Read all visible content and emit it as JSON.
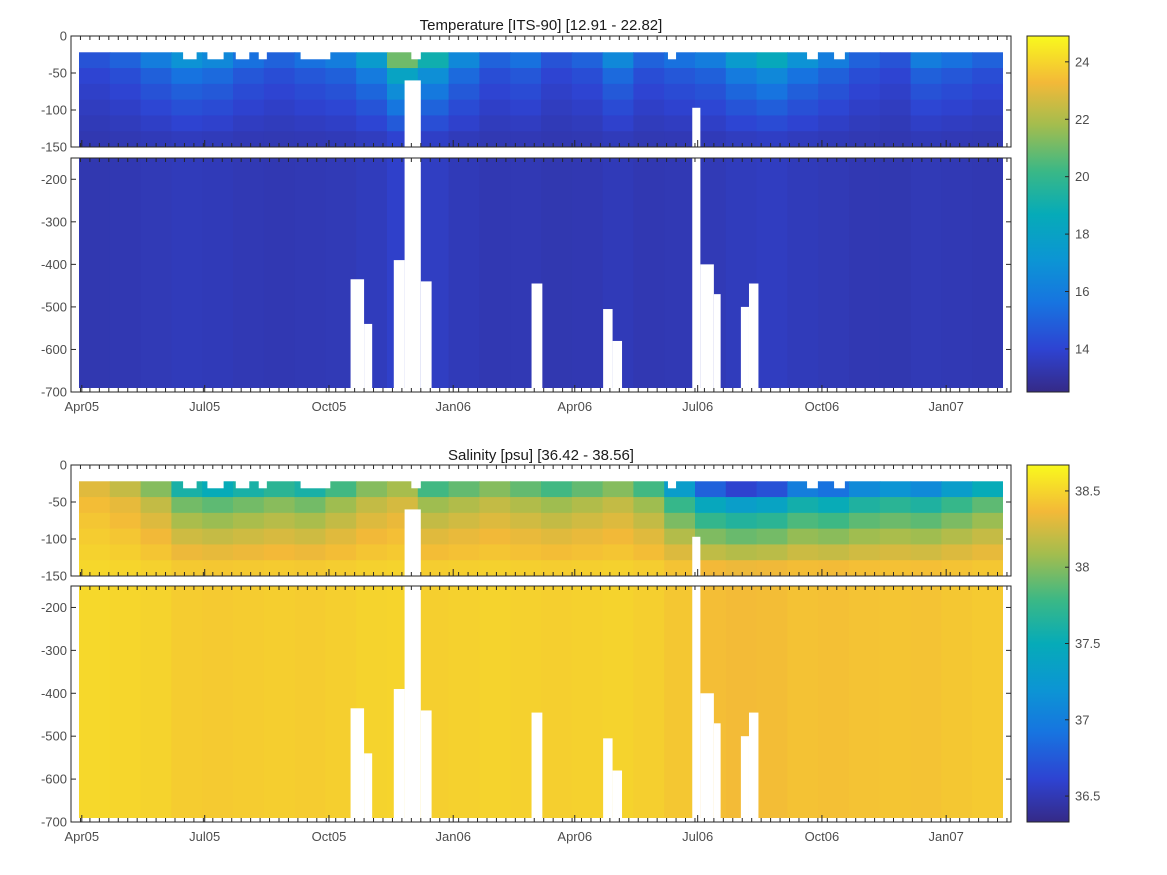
{
  "chart_data": [
    {
      "type": "heatmap",
      "title": "Temperature [ITS-90]   [12.91 - 22.82]",
      "variable": "Temperature",
      "xlabel": "",
      "ylabel": "",
      "x_tick_labels": [
        "Apr05",
        "Jul05",
        "Oct05",
        "Jan06",
        "Apr06",
        "Jul06",
        "Oct06",
        "Jan07"
      ],
      "x_ticks": [
        "2005-04-01",
        "2005-07-01",
        "2005-10-01",
        "2006-01-01",
        "2006-04-01",
        "2006-07-01",
        "2006-10-01",
        "2007-01-01"
      ],
      "x_range": [
        "2005-03-24",
        "2007-02-18"
      ],
      "upper_panel": {
        "ylim": [
          -150,
          0
        ],
        "y_ticks": [
          0,
          -50,
          -100,
          -150
        ]
      },
      "lower_panel": {
        "ylim": [
          -700,
          -150
        ],
        "y_ticks": [
          -200,
          -300,
          -400,
          -500,
          -600,
          -700
        ]
      },
      "colorbar": {
        "range": [
          12.5,
          24.9
        ],
        "ticks": [
          14,
          16,
          18,
          20,
          22,
          24
        ]
      },
      "surface_values": [
        14.5,
        15,
        16,
        17,
        16.5,
        15.5,
        15,
        15.5,
        16,
        17.5,
        21,
        19,
        16.5,
        15,
        15.5,
        14.5,
        15,
        16.5,
        15,
        15.5,
        16,
        17.5,
        18.5,
        17,
        16,
        15,
        14.5,
        16,
        15.5,
        15
      ],
      "deep_value": 13.2
    },
    {
      "type": "heatmap",
      "title": "Salinity [psu]   [36.42 - 38.56]",
      "variable": "Salinity",
      "xlabel": "",
      "ylabel": "",
      "x_tick_labels": [
        "Apr05",
        "Jul05",
        "Oct05",
        "Jan06",
        "Apr06",
        "Jul06",
        "Oct06",
        "Jan07"
      ],
      "x_ticks": [
        "2005-04-01",
        "2005-07-01",
        "2005-10-01",
        "2006-01-01",
        "2006-04-01",
        "2006-07-01",
        "2006-10-01",
        "2007-01-01"
      ],
      "x_range": [
        "2005-03-24",
        "2007-02-18"
      ],
      "upper_panel": {
        "ylim": [
          -150,
          0
        ],
        "y_ticks": [
          0,
          -50,
          -100,
          -150
        ]
      },
      "lower_panel": {
        "ylim": [
          -700,
          -150
        ],
        "y_ticks": [
          -200,
          -300,
          -400,
          -500,
          -600,
          -700
        ]
      },
      "colorbar": {
        "range": [
          36.33,
          38.67
        ],
        "ticks": [
          36.5,
          37,
          37.5,
          38,
          38.5
        ]
      },
      "surface_values": [
        38.3,
        38.2,
        38.0,
        37.6,
        37.5,
        37.6,
        37.7,
        37.6,
        37.8,
        38.0,
        38.1,
        37.8,
        37.9,
        38.0,
        37.9,
        37.8,
        37.9,
        38.0,
        37.8,
        37.3,
        36.8,
        36.6,
        36.7,
        37.0,
        36.9,
        37.1,
        37.2,
        37.1,
        37.3,
        37.5
      ],
      "deep_value": 38.53
    }
  ]
}
